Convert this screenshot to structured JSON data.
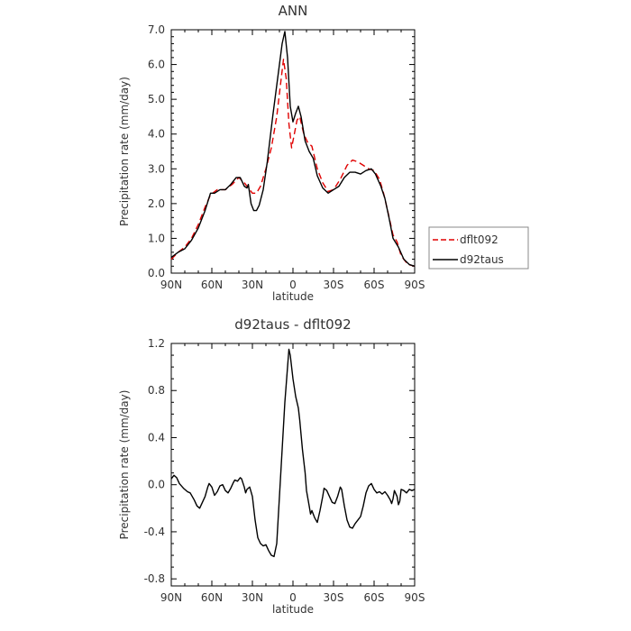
{
  "chart_data": [
    {
      "type": "line",
      "title": "ANN",
      "xlabel": "latitude",
      "ylabel": "Precipitation rate (mm/day)",
      "xlim": [
        90,
        -90
      ],
      "ylim": [
        0,
        7
      ],
      "x_ticks": [
        90,
        60,
        30,
        0,
        -30,
        -60,
        -90
      ],
      "x_tick_labels": [
        "90N",
        "60N",
        "30N",
        "0",
        "30S",
        "60S",
        "90S"
      ],
      "y_ticks": [
        0,
        1,
        2,
        3,
        4,
        5,
        6,
        7
      ],
      "y_tick_labels": [
        "0.0",
        "1.0",
        "2.0",
        "3.0",
        "4.0",
        "5.0",
        "6.0",
        "7.0"
      ],
      "legend_position": "right",
      "series": [
        {
          "name": "dflt092",
          "color": "#e00000",
          "dash": "dashed",
          "points": [
            [
              90,
              0.4
            ],
            [
              85,
              0.6
            ],
            [
              80,
              0.75
            ],
            [
              75,
              1.0
            ],
            [
              70,
              1.4
            ],
            [
              65,
              1.9
            ],
            [
              61,
              2.25
            ],
            [
              56,
              2.4
            ],
            [
              50,
              2.4
            ],
            [
              45,
              2.55
            ],
            [
              40,
              2.75
            ],
            [
              36,
              2.6
            ],
            [
              33,
              2.45
            ],
            [
              30,
              2.3
            ],
            [
              27,
              2.3
            ],
            [
              24,
              2.5
            ],
            [
              20,
              3.0
            ],
            [
              16,
              3.6
            ],
            [
              12,
              4.5
            ],
            [
              9,
              5.5
            ],
            [
              7,
              6.15
            ],
            [
              5,
              5.6
            ],
            [
              3,
              4.3
            ],
            [
              1,
              3.6
            ],
            [
              -1,
              4.0
            ],
            [
              -3,
              4.4
            ],
            [
              -5,
              4.5
            ],
            [
              -8,
              4.0
            ],
            [
              -11,
              3.75
            ],
            [
              -14,
              3.65
            ],
            [
              -18,
              3.0
            ],
            [
              -22,
              2.6
            ],
            [
              -26,
              2.35
            ],
            [
              -30,
              2.4
            ],
            [
              -35,
              2.7
            ],
            [
              -40,
              3.1
            ],
            [
              -44,
              3.25
            ],
            [
              -48,
              3.2
            ],
            [
              -52,
              3.1
            ],
            [
              -56,
              3.0
            ],
            [
              -60,
              2.95
            ],
            [
              -64,
              2.7
            ],
            [
              -67,
              2.3
            ],
            [
              -70,
              1.8
            ],
            [
              -74,
              1.1
            ],
            [
              -77,
              0.9
            ],
            [
              -80,
              0.5
            ],
            [
              -85,
              0.25
            ],
            [
              -90,
              0.2
            ]
          ]
        },
        {
          "name": "d92taus",
          "color": "#000000",
          "dash": "solid",
          "points": [
            [
              90,
              0.45
            ],
            [
              85,
              0.6
            ],
            [
              80,
              0.7
            ],
            [
              75,
              0.95
            ],
            [
              70,
              1.3
            ],
            [
              65,
              1.8
            ],
            [
              61,
              2.3
            ],
            [
              58,
              2.3
            ],
            [
              54,
              2.4
            ],
            [
              50,
              2.4
            ],
            [
              46,
              2.55
            ],
            [
              42,
              2.75
            ],
            [
              39,
              2.75
            ],
            [
              36,
              2.5
            ],
            [
              34,
              2.45
            ],
            [
              33,
              2.55
            ],
            [
              31,
              2.0
            ],
            [
              29,
              1.8
            ],
            [
              27,
              1.8
            ],
            [
              25,
              1.95
            ],
            [
              22,
              2.4
            ],
            [
              19,
              3.2
            ],
            [
              15,
              4.5
            ],
            [
              11,
              5.7
            ],
            [
              8,
              6.6
            ],
            [
              6,
              6.95
            ],
            [
              4,
              6.2
            ],
            [
              2,
              4.8
            ],
            [
              0,
              4.35
            ],
            [
              -2,
              4.6
            ],
            [
              -4,
              4.8
            ],
            [
              -6,
              4.5
            ],
            [
              -9,
              3.8
            ],
            [
              -12,
              3.5
            ],
            [
              -15,
              3.3
            ],
            [
              -18,
              2.8
            ],
            [
              -22,
              2.45
            ],
            [
              -26,
              2.3
            ],
            [
              -30,
              2.4
            ],
            [
              -34,
              2.5
            ],
            [
              -38,
              2.75
            ],
            [
              -42,
              2.9
            ],
            [
              -46,
              2.9
            ],
            [
              -50,
              2.85
            ],
            [
              -54,
              2.95
            ],
            [
              -58,
              3.0
            ],
            [
              -61,
              2.85
            ],
            [
              -65,
              2.5
            ],
            [
              -68,
              2.15
            ],
            [
              -71,
              1.6
            ],
            [
              -74,
              1.0
            ],
            [
              -78,
              0.75
            ],
            [
              -82,
              0.4
            ],
            [
              -86,
              0.25
            ],
            [
              -90,
              0.2
            ]
          ]
        }
      ]
    },
    {
      "type": "line",
      "title": "d92taus - dflt092",
      "xlabel": "latitude",
      "ylabel": "Precipitation rate (mm/day)",
      "xlim": [
        90,
        -90
      ],
      "ylim": [
        -0.86,
        1.2
      ],
      "x_ticks": [
        90,
        60,
        30,
        0,
        -30,
        -60,
        -90
      ],
      "x_tick_labels": [
        "90N",
        "60N",
        "30N",
        "0",
        "30S",
        "60S",
        "90S"
      ],
      "y_ticks": [
        -0.8,
        -0.4,
        0.0,
        0.4,
        0.8,
        1.2
      ],
      "y_tick_labels": [
        "-0.8",
        "-0.4",
        "0.0",
        "0.4",
        "0.8",
        "1.2"
      ],
      "series": [
        {
          "color": "#000000",
          "dash": "solid",
          "points": [
            [
              90,
              0.05
            ],
            [
              88,
              0.08
            ],
            [
              86,
              0.06
            ],
            [
              84,
              0.01
            ],
            [
              81,
              -0.03
            ],
            [
              78,
              -0.06
            ],
            [
              76,
              -0.07
            ],
            [
              73,
              -0.13
            ],
            [
              71,
              -0.18
            ],
            [
              69,
              -0.2
            ],
            [
              67,
              -0.15
            ],
            [
              65,
              -0.1
            ],
            [
              63,
              -0.02
            ],
            [
              62,
              0.01
            ],
            [
              60,
              -0.02
            ],
            [
              58,
              -0.09
            ],
            [
              56,
              -0.06
            ],
            [
              54,
              -0.01
            ],
            [
              52,
              0.0
            ],
            [
              50,
              -0.05
            ],
            [
              48,
              -0.07
            ],
            [
              46,
              -0.03
            ],
            [
              44,
              0.02
            ],
            [
              43,
              0.04
            ],
            [
              41,
              0.03
            ],
            [
              39,
              0.06
            ],
            [
              38,
              0.05
            ],
            [
              36,
              -0.02
            ],
            [
              35,
              -0.07
            ],
            [
              34,
              -0.04
            ],
            [
              32,
              -0.02
            ],
            [
              30,
              -0.1
            ],
            [
              28,
              -0.3
            ],
            [
              26,
              -0.45
            ],
            [
              24,
              -0.5
            ],
            [
              22,
              -0.52
            ],
            [
              20,
              -0.51
            ],
            [
              18,
              -0.56
            ],
            [
              16,
              -0.6
            ],
            [
              14,
              -0.61
            ],
            [
              12,
              -0.5
            ],
            [
              10,
              -0.1
            ],
            [
              8,
              0.3
            ],
            [
              6,
              0.7
            ],
            [
              4,
              1.0
            ],
            [
              3,
              1.15
            ],
            [
              2,
              1.1
            ],
            [
              0,
              0.9
            ],
            [
              -2,
              0.75
            ],
            [
              -4,
              0.65
            ],
            [
              -5,
              0.55
            ],
            [
              -7,
              0.3
            ],
            [
              -9,
              0.1
            ],
            [
              -10,
              -0.05
            ],
            [
              -12,
              -0.18
            ],
            [
              -13,
              -0.25
            ],
            [
              -14,
              -0.22
            ],
            [
              -16,
              -0.28
            ],
            [
              -18,
              -0.32
            ],
            [
              -20,
              -0.22
            ],
            [
              -22,
              -0.1
            ],
            [
              -23,
              -0.03
            ],
            [
              -25,
              -0.05
            ],
            [
              -27,
              -0.1
            ],
            [
              -29,
              -0.15
            ],
            [
              -31,
              -0.16
            ],
            [
              -33,
              -0.1
            ],
            [
              -35,
              -0.02
            ],
            [
              -36,
              -0.04
            ],
            [
              -38,
              -0.18
            ],
            [
              -40,
              -0.3
            ],
            [
              -42,
              -0.36
            ],
            [
              -44,
              -0.37
            ],
            [
              -46,
              -0.33
            ],
            [
              -48,
              -0.3
            ],
            [
              -50,
              -0.27
            ],
            [
              -52,
              -0.18
            ],
            [
              -54,
              -0.07
            ],
            [
              -56,
              -0.01
            ],
            [
              -58,
              0.01
            ],
            [
              -60,
              -0.04
            ],
            [
              -62,
              -0.07
            ],
            [
              -64,
              -0.06
            ],
            [
              -66,
              -0.08
            ],
            [
              -68,
              -0.06
            ],
            [
              -70,
              -0.09
            ],
            [
              -72,
              -0.13
            ],
            [
              -73,
              -0.16
            ],
            [
              -74,
              -0.12
            ],
            [
              -75,
              -0.05
            ],
            [
              -77,
              -0.1
            ],
            [
              -78,
              -0.17
            ],
            [
              -79,
              -0.14
            ],
            [
              -80,
              -0.04
            ],
            [
              -82,
              -0.05
            ],
            [
              -84,
              -0.07
            ],
            [
              -86,
              -0.04
            ],
            [
              -88,
              -0.05
            ],
            [
              -90,
              -0.04
            ]
          ]
        }
      ]
    }
  ]
}
